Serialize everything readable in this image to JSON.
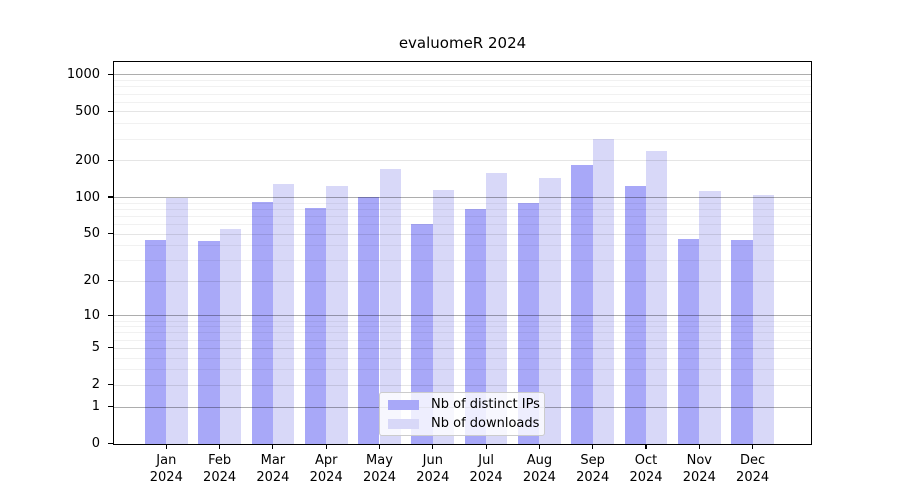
{
  "chart_data": {
    "type": "bar",
    "title": "evaluomeR 2024",
    "categories": [
      "Jan",
      "Feb",
      "Mar",
      "Apr",
      "May",
      "Jun",
      "Jul",
      "Aug",
      "Sep",
      "Oct",
      "Nov",
      "Dec"
    ],
    "year_label": "2024",
    "series": [
      {
        "name": "Nb of distinct IPs",
        "color": "#a8a8f8",
        "values": [
          44,
          43,
          91,
          81,
          100,
          60,
          79,
          90,
          183,
          123,
          45,
          44
        ]
      },
      {
        "name": "Nb of downloads",
        "color": "#d8d8f8",
        "values": [
          98,
          55,
          128,
          124,
          171,
          114,
          158,
          142,
          300,
          240,
          113,
          104
        ]
      }
    ],
    "y_ticks": [
      0,
      1,
      2,
      5,
      10,
      20,
      50,
      100,
      200,
      500,
      1000
    ],
    "scale": "log1p",
    "ylim": [
      0,
      1270
    ],
    "xlabel": "",
    "ylabel": "",
    "grid": "on",
    "legend_position": "inside-bottom-center"
  }
}
